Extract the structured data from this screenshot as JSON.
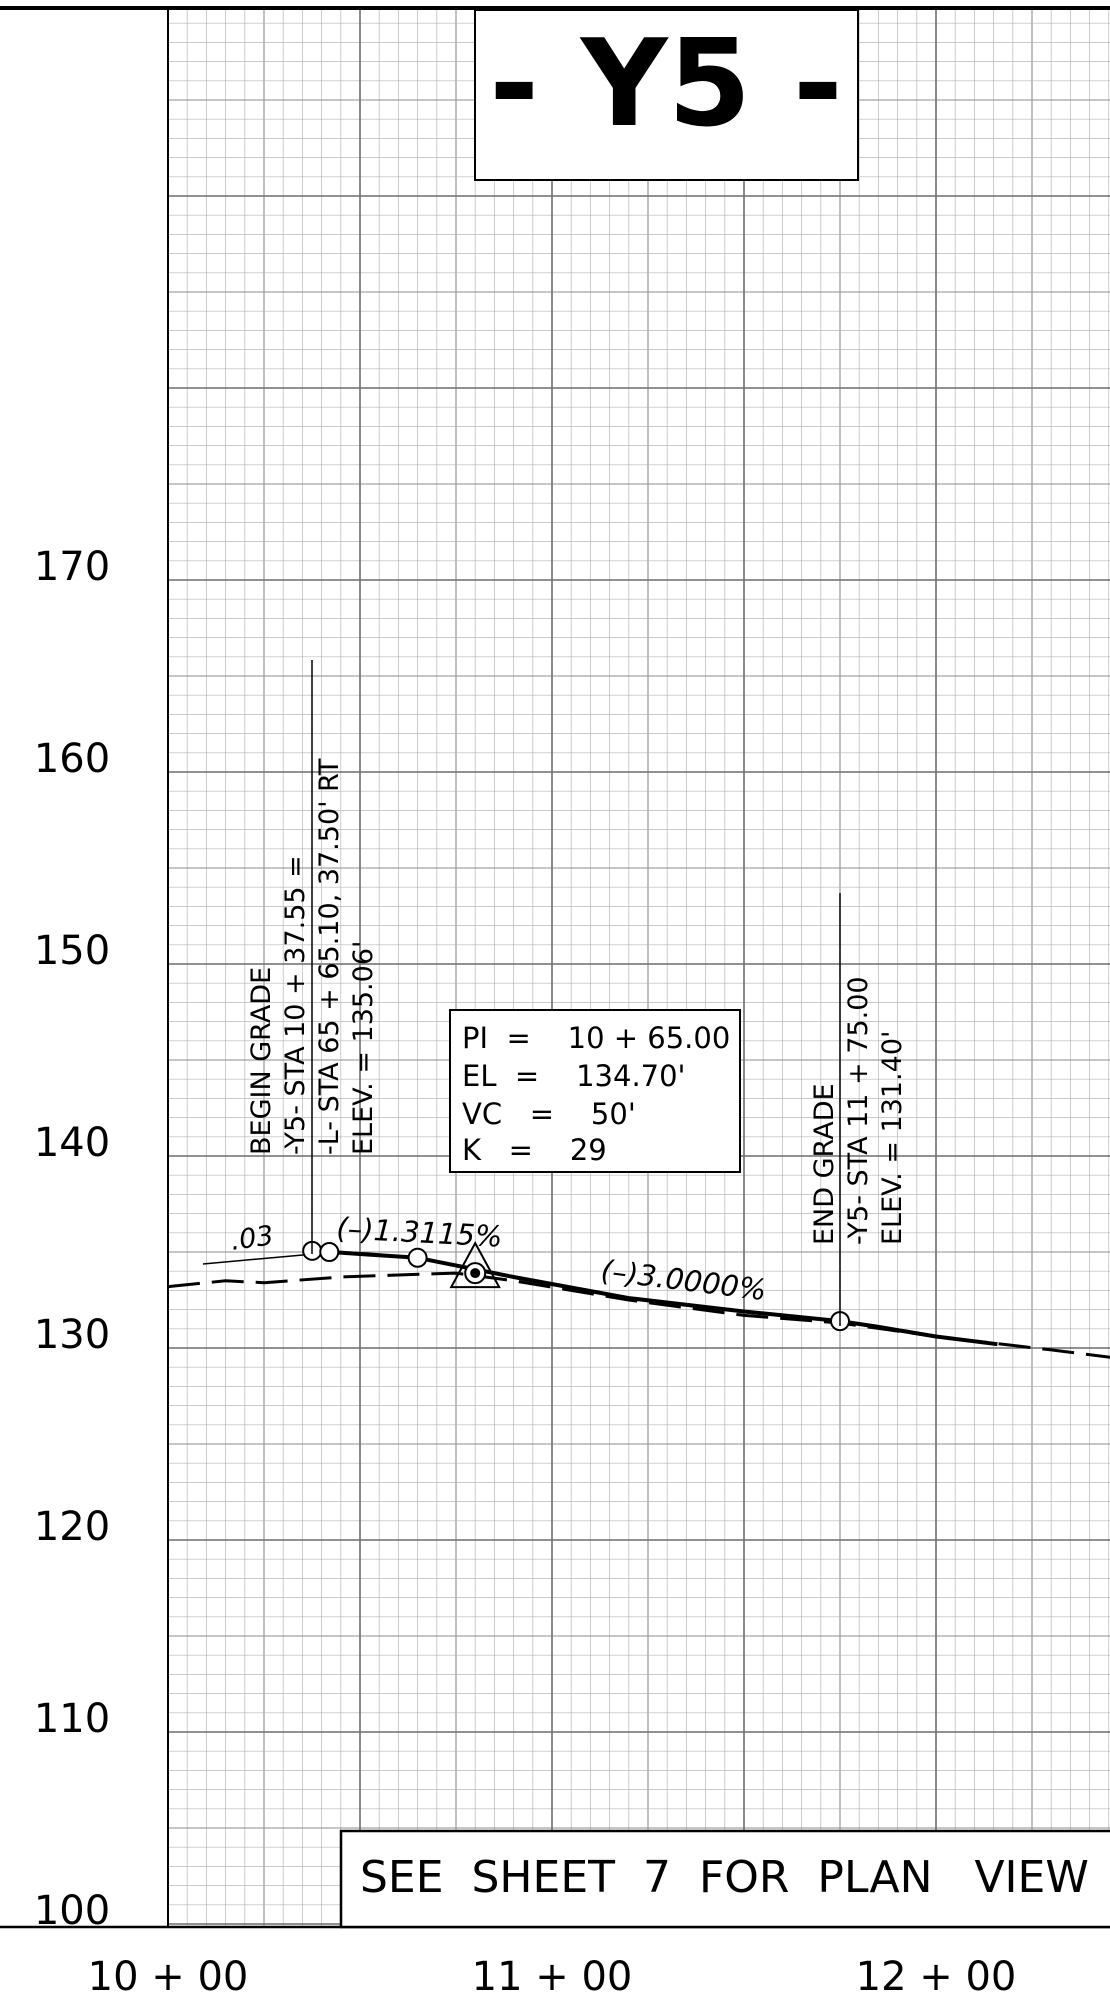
{
  "title": "- Y5 -",
  "axes": {
    "y_ticks": [
      "170",
      "160",
      "150",
      "140",
      "130",
      "120",
      "110",
      "100"
    ],
    "x_ticks": [
      "10 + 00",
      "11 + 00",
      "12 + 00"
    ]
  },
  "begin_grade": {
    "lines": [
      "BEGIN  GRADE",
      "-Y5-  STA  10 + 37.55 =",
      "-L-  STA  65 + 65.10, 37.50' RT",
      "ELEV.  =   135.06'"
    ]
  },
  "end_grade": {
    "lines": [
      "END  GRADE",
      "-Y5-  STA  11 + 75.00",
      "ELEV.  =   131.40'"
    ]
  },
  "pi_box": {
    "lines": [
      "PI  =    10 + 65.00",
      "EL  =    134.70'",
      "VC   =    50'",
      "K   =    29"
    ]
  },
  "grades": {
    "small": ".03",
    "left": "(–)1.3115%",
    "right": "(–)3.0000%"
  },
  "note": "SEE  SHEET  7  FOR  PLAN   VIEW",
  "chart_data": {
    "type": "line",
    "title": "- Y5 -",
    "xlabel": "",
    "ylabel": "",
    "x_ticks": [
      "10 + 00",
      "11 + 00",
      "12 + 00"
    ],
    "ylim": [
      100,
      175
    ],
    "grid": true,
    "series": [
      {
        "style": "solid",
        "points": [
          [
            1037.55,
            135.06
          ],
          [
            1065,
            134.7
          ],
          [
            1080,
            134.1
          ],
          [
            1090,
            133.7
          ],
          [
            1120,
            132.6
          ],
          [
            1150,
            131.9
          ],
          [
            1175,
            131.4
          ],
          [
            1185,
            131.1
          ],
          [
            1200,
            130.6
          ],
          [
            1216,
            130.2
          ]
        ]
      },
      {
        "style": "dashed",
        "points": [
          [
            1000,
            133.2
          ],
          [
            1015,
            133.5
          ],
          [
            1025,
            133.4
          ],
          [
            1045,
            133.7
          ],
          [
            1060,
            133.8
          ],
          [
            1075,
            133.9
          ],
          [
            1090,
            133.5
          ],
          [
            1120,
            132.5
          ],
          [
            1150,
            131.7
          ],
          [
            1175,
            131.3
          ],
          [
            1200,
            130.6
          ],
          [
            1230,
            129.9
          ],
          [
            1258,
            129.2
          ]
        ]
      }
    ],
    "markers": [
      {
        "x": 1037.55,
        "y": 135.06
      },
      {
        "x": 1042,
        "y": 135.0
      },
      {
        "x": 1065,
        "y": 134.7
      },
      {
        "x": 1080,
        "y": 133.9
      },
      {
        "x": 1175,
        "y": 131.4
      }
    ]
  }
}
